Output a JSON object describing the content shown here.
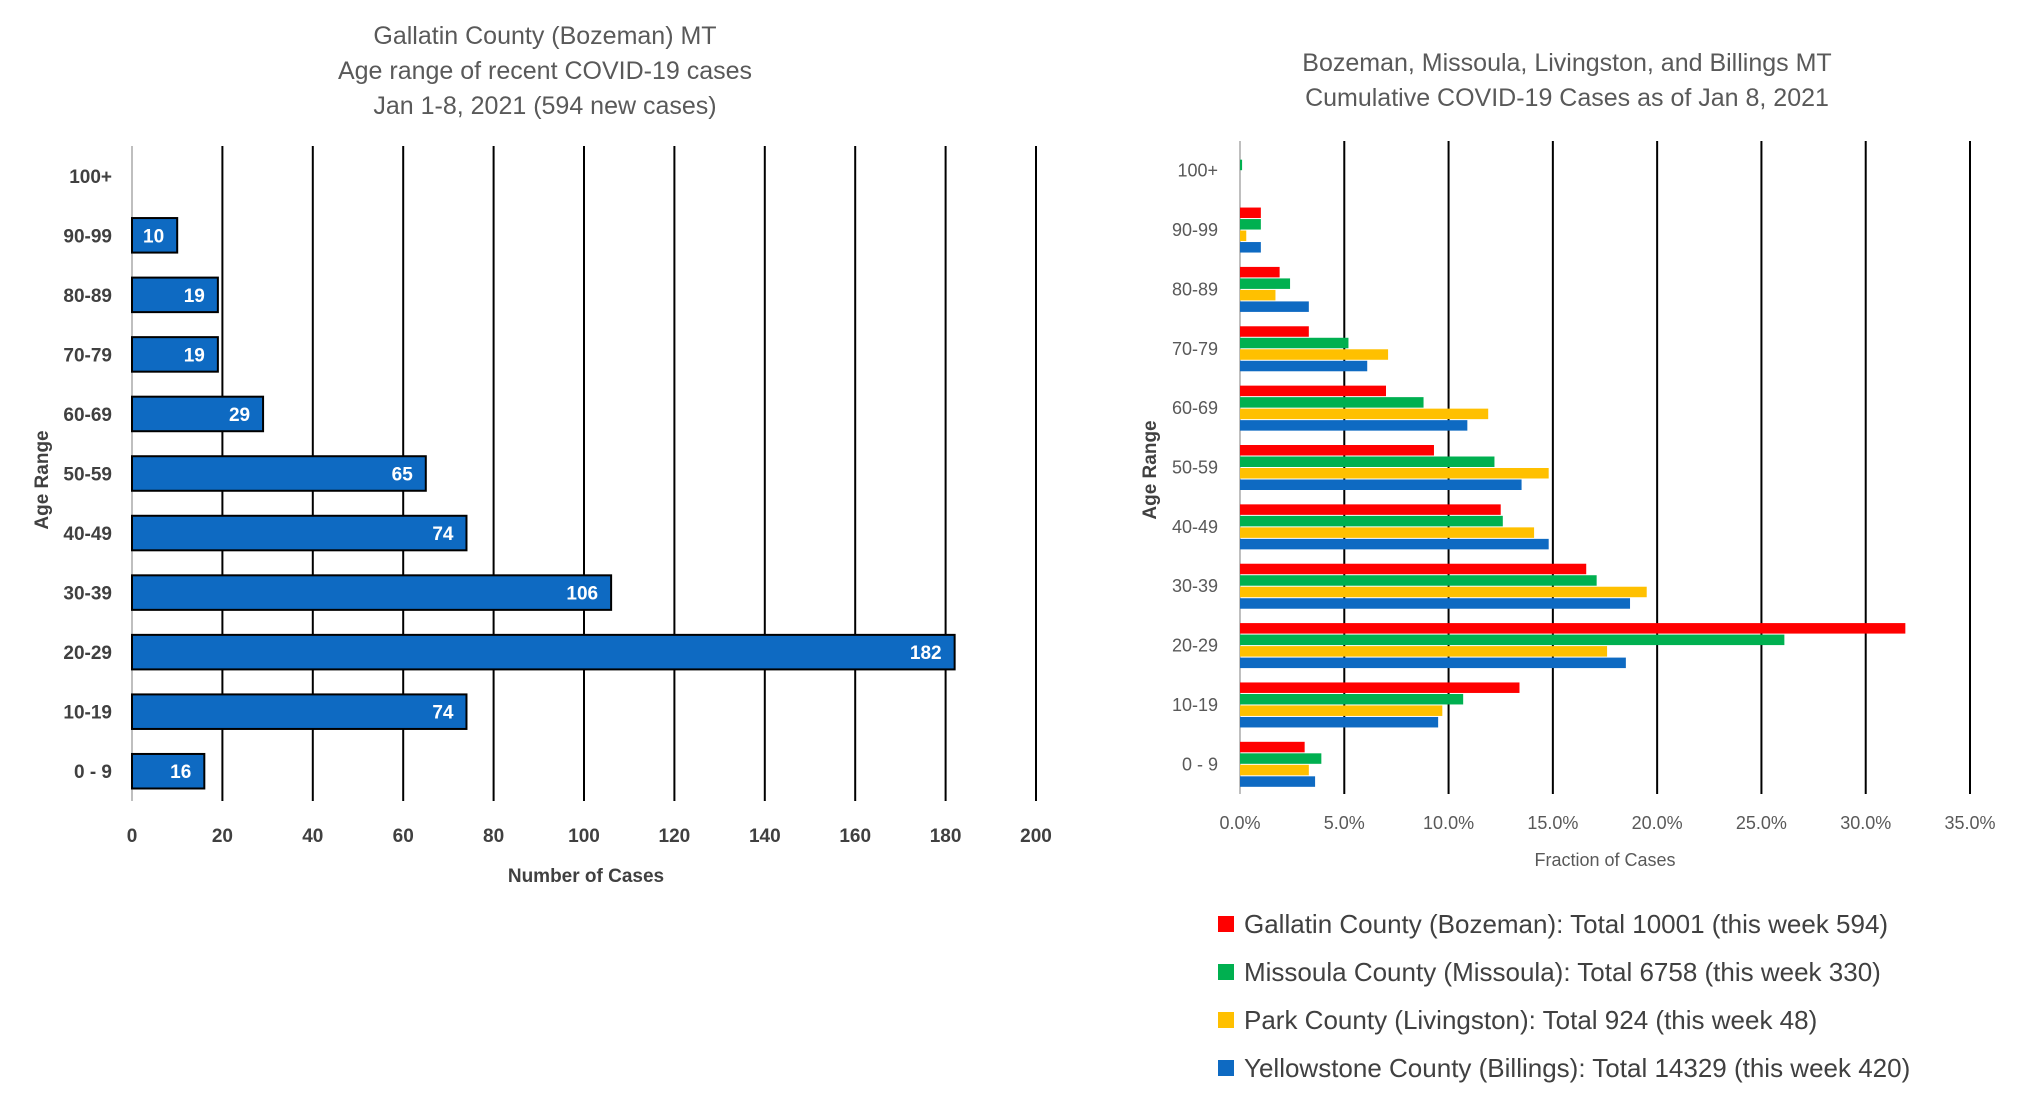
{
  "chart_data": [
    {
      "type": "bar",
      "orientation": "horizontal",
      "title": [
        "Gallatin County (Bozeman) MT",
        "Age range of recent COVID-19 cases",
        "Jan 1-8, 2021 (594 new cases)"
      ],
      "xlabel": "Number of Cases",
      "ylabel": "Age Range",
      "categories": [
        "0 - 9",
        "10-19",
        "20-29",
        "30-39",
        "40-49",
        "50-59",
        "60-69",
        "70-79",
        "80-89",
        "90-99",
        "100+"
      ],
      "values": [
        16,
        74,
        182,
        106,
        74,
        65,
        29,
        19,
        19,
        10,
        null
      ],
      "value_labels": [
        "16",
        "74",
        "182",
        "106",
        "74",
        "65",
        "29",
        "19",
        "19",
        "10",
        ""
      ],
      "xlim": [
        0,
        200
      ],
      "xticks": [
        "0",
        "20",
        "40",
        "60",
        "80",
        "100",
        "120",
        "140",
        "160",
        "180",
        "200"
      ],
      "grid": "vertical",
      "bar_color": "#0e6ac2"
    },
    {
      "type": "bar",
      "orientation": "horizontal",
      "title": [
        "Bozeman, Missoula, Livingston, and Billings MT",
        "Cumulative COVID-19 Cases as of Jan 8, 2021"
      ],
      "xlabel": "Fraction of Cases",
      "ylabel": "Age Range",
      "categories": [
        "0 - 9",
        "10-19",
        "20-29",
        "30-39",
        "40-49",
        "50-59",
        "60-69",
        "70-79",
        "80-89",
        "90-99",
        "100+"
      ],
      "series": [
        {
          "name": "Gallatin County (Bozeman): Total 10001 (this week 594)",
          "color": "#ff0000",
          "values": [
            3.1,
            13.4,
            31.9,
            16.6,
            12.5,
            9.3,
            7.0,
            3.3,
            1.9,
            1.0,
            0.0
          ]
        },
        {
          "name": "Missoula County (Missoula): Total 6758 (this week 330)",
          "color": "#00b050",
          "values": [
            3.9,
            10.7,
            26.1,
            17.1,
            12.6,
            12.2,
            8.8,
            5.2,
            2.4,
            1.0,
            0.1
          ]
        },
        {
          "name": "Park County (Livingston): Total 924 (this week 48)",
          "color": "#ffc000",
          "values": [
            3.3,
            9.7,
            17.6,
            19.5,
            14.1,
            14.8,
            11.9,
            7.1,
            1.7,
            0.3,
            0.0
          ]
        },
        {
          "name": "Yellowstone County (Billings): Total 14329 (this week 420)",
          "color": "#0e6ac2",
          "values": [
            3.6,
            9.5,
            18.5,
            18.7,
            14.8,
            13.5,
            10.9,
            6.1,
            3.3,
            1.0,
            0.0
          ]
        }
      ],
      "xlim": [
        0,
        35
      ],
      "xticks": [
        "0.0%",
        "5.0%",
        "10.0%",
        "15.0%",
        "20.0%",
        "25.0%",
        "30.0%",
        "35.0%"
      ],
      "grid": "vertical",
      "legend": "bottom"
    }
  ]
}
